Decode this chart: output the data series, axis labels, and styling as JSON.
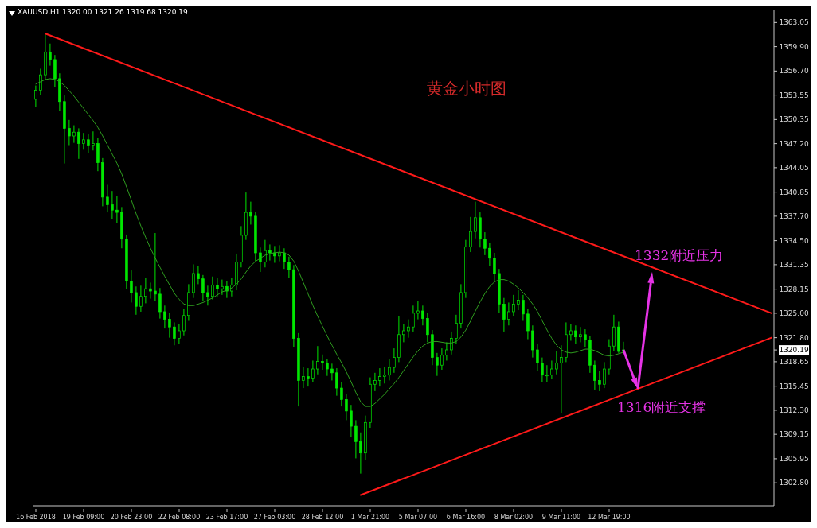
{
  "chart_data": {
    "type": "candlestick",
    "title": "黄金小时图",
    "subtitle": "XAUUSD,H1  1320.00 1321.26 1319.68 1320.19",
    "color": "#00e600",
    "categories": [
      "16 Feb 2018",
      null,
      null,
      null,
      null,
      null,
      null,
      null,
      null,
      null,
      "19 Feb 09:00",
      null,
      null,
      null,
      null,
      null,
      null,
      null,
      null,
      null,
      "20 Feb 23:00",
      null,
      null,
      null,
      null,
      null,
      null,
      null,
      null,
      null,
      "22 Feb 08:00",
      null,
      null,
      null,
      null,
      null,
      null,
      null,
      null,
      null,
      "23 Feb 17:00",
      null,
      null,
      null,
      null,
      null,
      null,
      null,
      null,
      null,
      "27 Feb 03:00",
      null,
      null,
      null,
      null,
      null,
      null,
      null,
      null,
      null,
      "28 Feb 12:00",
      null,
      null,
      null,
      null,
      null,
      null,
      null,
      null,
      null,
      "1 Mar 21:00",
      null,
      null,
      null,
      null,
      null,
      null,
      null,
      null,
      null,
      "5 Mar 07:00",
      null,
      null,
      null,
      null,
      null,
      null,
      null,
      null,
      null,
      "6 Mar 16:00",
      null,
      null,
      null,
      null,
      null,
      null,
      null,
      null,
      null,
      "8 Mar 02:00",
      null,
      null,
      null,
      null,
      null,
      null,
      null,
      null,
      null,
      "9 Mar 11:00",
      null,
      null,
      null,
      null,
      null,
      null,
      null,
      null,
      null,
      "12 Mar 19:00",
      null,
      null,
      null,
      null,
      null,
      null,
      null,
      null,
      null,
      null,
      null,
      null,
      null,
      null,
      null,
      null,
      null,
      null,
      null,
      null,
      null,
      null,
      null,
      null,
      null,
      null,
      null,
      null,
      null,
      null,
      null,
      null,
      null,
      null
    ],
    "ohlc": [
      [
        1353.0,
        1354.8,
        1352.0,
        1354.2
      ],
      [
        1354.2,
        1357.0,
        1353.6,
        1356.2
      ],
      [
        1356.2,
        1361.5,
        1355.5,
        1359.2
      ],
      [
        1359.2,
        1360.3,
        1357.4,
        1358.2
      ],
      [
        1358.2,
        1358.8,
        1354.6,
        1355.7
      ],
      [
        1355.7,
        1356.4,
        1351.5,
        1352.7
      ],
      [
        1352.7,
        1353.5,
        1344.6,
        1349.2
      ],
      [
        1349.2,
        1350.3,
        1347.0,
        1348.2
      ],
      [
        1348.2,
        1349.6,
        1347.3,
        1348.7
      ],
      [
        1348.7,
        1349.2,
        1345.2,
        1347.2
      ],
      [
        1347.2,
        1348.6,
        1346.4,
        1347.7
      ],
      [
        1347.7,
        1348.4,
        1346.0,
        1347.0
      ],
      [
        1347.0,
        1348.8,
        1346.3,
        1347.2
      ],
      [
        1347.2,
        1347.9,
        1343.6,
        1344.7
      ],
      [
        1344.7,
        1345.3,
        1339.0,
        1340.2
      ],
      [
        1340.2,
        1341.8,
        1338.2,
        1339.2
      ],
      [
        1339.2,
        1341.0,
        1337.3,
        1338.5
      ],
      [
        1338.5,
        1340.3,
        1336.8,
        1338.2
      ],
      [
        1338.2,
        1338.9,
        1333.5,
        1334.7
      ],
      [
        1334.7,
        1335.3,
        1328.2,
        1329.2
      ],
      [
        1329.2,
        1330.6,
        1326.4,
        1327.7
      ],
      [
        1327.7,
        1328.5,
        1324.8,
        1325.9
      ],
      [
        1325.9,
        1328.6,
        1325.2,
        1327.2
      ],
      [
        1327.2,
        1329.6,
        1326.3,
        1328.2
      ],
      [
        1328.2,
        1329.0,
        1326.9,
        1327.9
      ],
      [
        1327.9,
        1335.5,
        1326.6,
        1327.5
      ],
      [
        1327.5,
        1328.3,
        1324.3,
        1325.2
      ],
      [
        1325.2,
        1326.0,
        1323.0,
        1324.2
      ],
      [
        1324.2,
        1325.0,
        1321.8,
        1323.2
      ],
      [
        1323.2,
        1323.8,
        1320.8,
        1321.7
      ],
      [
        1321.7,
        1323.6,
        1321.0,
        1322.7
      ],
      [
        1322.7,
        1325.6,
        1322.1,
        1324.7
      ],
      [
        1324.7,
        1328.8,
        1324.0,
        1327.7
      ],
      [
        1327.7,
        1331.4,
        1327.0,
        1330.2
      ],
      [
        1330.2,
        1331.2,
        1328.8,
        1329.5
      ],
      [
        1329.5,
        1330.0,
        1326.6,
        1327.7
      ],
      [
        1327.7,
        1328.6,
        1326.0,
        1327.2
      ],
      [
        1327.2,
        1329.8,
        1326.8,
        1328.7
      ],
      [
        1328.7,
        1329.6,
        1327.2,
        1328.2
      ],
      [
        1328.2,
        1329.4,
        1327.4,
        1328.5
      ],
      [
        1328.5,
        1329.2,
        1327.0,
        1327.9
      ],
      [
        1327.9,
        1329.6,
        1327.2,
        1328.7
      ],
      [
        1328.7,
        1332.8,
        1328.0,
        1331.7
      ],
      [
        1331.7,
        1336.4,
        1331.0,
        1335.2
      ],
      [
        1335.2,
        1340.8,
        1334.6,
        1338.2
      ],
      [
        1338.2,
        1339.6,
        1336.6,
        1337.7
      ],
      [
        1337.7,
        1338.3,
        1331.8,
        1332.9
      ],
      [
        1332.9,
        1333.6,
        1330.4,
        1331.7
      ],
      [
        1331.7,
        1334.6,
        1331.0,
        1333.2
      ],
      [
        1333.2,
        1334.0,
        1331.9,
        1332.9
      ],
      [
        1332.9,
        1333.8,
        1331.6,
        1332.5
      ],
      [
        1332.5,
        1333.9,
        1331.8,
        1332.9
      ],
      [
        1332.9,
        1333.5,
        1330.8,
        1331.7
      ],
      [
        1331.7,
        1332.4,
        1329.6,
        1330.7
      ],
      [
        1330.7,
        1331.3,
        1320.6,
        1321.7
      ],
      [
        1321.7,
        1322.4,
        1312.8,
        1316.2
      ],
      [
        1316.2,
        1318.0,
        1315.2,
        1316.7
      ],
      [
        1316.7,
        1317.8,
        1315.4,
        1316.5
      ],
      [
        1316.5,
        1318.8,
        1316.0,
        1317.7
      ],
      [
        1317.7,
        1320.7,
        1317.0,
        1318.7
      ],
      [
        1318.7,
        1319.6,
        1317.6,
        1318.5
      ],
      [
        1318.5,
        1319.0,
        1316.8,
        1317.7
      ],
      [
        1317.7,
        1318.4,
        1316.2,
        1317.2
      ],
      [
        1317.2,
        1317.8,
        1314.2,
        1315.2
      ],
      [
        1315.2,
        1316.0,
        1312.8,
        1313.7
      ],
      [
        1313.7,
        1314.4,
        1311.0,
        1312.2
      ],
      [
        1312.2,
        1313.0,
        1308.8,
        1310.2
      ],
      [
        1310.2,
        1311.0,
        1306.0,
        1308.2
      ],
      [
        1308.2,
        1309.4,
        1304.0,
        1306.7
      ],
      [
        1306.7,
        1311.6,
        1305.8,
        1310.7
      ],
      [
        1310.7,
        1316.6,
        1310.0,
        1315.7
      ],
      [
        1315.7,
        1317.2,
        1314.8,
        1316.2
      ],
      [
        1316.2,
        1317.8,
        1315.4,
        1316.7
      ],
      [
        1316.7,
        1318.0,
        1315.8,
        1316.9
      ],
      [
        1316.9,
        1319.0,
        1316.2,
        1317.9
      ],
      [
        1317.9,
        1320.4,
        1317.2,
        1319.2
      ],
      [
        1319.2,
        1324.6,
        1318.6,
        1322.2
      ],
      [
        1322.2,
        1323.6,
        1321.2,
        1322.7
      ],
      [
        1322.7,
        1324.2,
        1321.8,
        1323.2
      ],
      [
        1323.2,
        1326.0,
        1322.6,
        1325.0
      ],
      [
        1325.0,
        1326.6,
        1324.2,
        1325.3
      ],
      [
        1325.3,
        1326.0,
        1323.4,
        1324.3
      ],
      [
        1324.3,
        1325.0,
        1321.2,
        1322.2
      ],
      [
        1322.2,
        1322.8,
        1318.2,
        1319.2
      ],
      [
        1319.2,
        1319.8,
        1316.8,
        1318.2
      ],
      [
        1318.2,
        1320.4,
        1317.6,
        1319.5
      ],
      [
        1319.5,
        1321.2,
        1318.8,
        1320.2
      ],
      [
        1320.2,
        1322.6,
        1319.6,
        1321.7
      ],
      [
        1321.7,
        1324.8,
        1321.0,
        1323.7
      ],
      [
        1323.7,
        1328.8,
        1323.0,
        1327.7
      ],
      [
        1327.7,
        1334.6,
        1327.0,
        1333.7
      ],
      [
        1333.7,
        1337.6,
        1333.0,
        1335.7
      ],
      [
        1335.7,
        1339.6,
        1334.8,
        1337.5
      ],
      [
        1337.5,
        1338.2,
        1333.6,
        1334.7
      ],
      [
        1334.7,
        1335.6,
        1332.6,
        1333.5
      ],
      [
        1333.5,
        1334.2,
        1331.2,
        1332.2
      ],
      [
        1332.2,
        1332.9,
        1329.2,
        1330.2
      ],
      [
        1330.2,
        1330.8,
        1325.0,
        1326.2
      ],
      [
        1326.2,
        1327.0,
        1322.6,
        1324.2
      ],
      [
        1324.2,
        1326.4,
        1323.4,
        1325.2
      ],
      [
        1325.2,
        1327.4,
        1324.6,
        1326.2
      ],
      [
        1326.2,
        1328.0,
        1325.4,
        1326.7
      ],
      [
        1326.7,
        1327.4,
        1324.0,
        1324.9
      ],
      [
        1324.9,
        1325.6,
        1321.6,
        1322.7
      ],
      [
        1322.7,
        1323.4,
        1319.2,
        1320.2
      ],
      [
        1320.2,
        1321.0,
        1317.4,
        1318.5
      ],
      [
        1318.5,
        1319.2,
        1316.0,
        1316.9
      ],
      [
        1316.9,
        1318.2,
        1316.0,
        1316.9
      ],
      [
        1316.9,
        1318.8,
        1316.4,
        1317.7
      ],
      [
        1317.7,
        1320.0,
        1317.0,
        1318.5
      ],
      [
        1318.5,
        1320.8,
        1311.9,
        1319.2
      ],
      [
        1319.2,
        1323.8,
        1318.6,
        1322.2
      ],
      [
        1322.2,
        1323.6,
        1321.4,
        1322.7
      ],
      [
        1322.7,
        1323.4,
        1321.0,
        1321.9
      ],
      [
        1321.9,
        1323.2,
        1321.2,
        1322.2
      ],
      [
        1322.2,
        1322.9,
        1320.6,
        1321.5
      ],
      [
        1321.5,
        1322.0,
        1317.2,
        1318.2
      ],
      [
        1318.2,
        1318.8,
        1315.0,
        1316.2
      ],
      [
        1316.2,
        1317.4,
        1314.8,
        1315.7
      ],
      [
        1315.7,
        1318.6,
        1315.2,
        1317.7
      ],
      [
        1317.7,
        1321.6,
        1317.0,
        1320.7
      ],
      [
        1320.7,
        1324.8,
        1320.0,
        1323.2
      ],
      [
        1323.2,
        1323.9,
        1319.8,
        1320.0
      ],
      [
        1320.0,
        1321.26,
        1319.68,
        1320.19
      ],
      null,
      null,
      null,
      null,
      null,
      null,
      null,
      null,
      null,
      null,
      null,
      null,
      null,
      null,
      null,
      null,
      null,
      null,
      null,
      null,
      null,
      null,
      null,
      null,
      null,
      null,
      null,
      null,
      null,
      null,
      null
    ],
    "series": [
      {
        "type": "line",
        "color": "#2f9e1f",
        "values": [
          1355,
          1355.3,
          1355.6,
          1355.7,
          1355.6,
          1355.3,
          1354.8,
          1354.1,
          1353.4,
          1352.6,
          1351.8,
          1351.0,
          1350.2,
          1349.3,
          1348.2,
          1347.0,
          1345.8,
          1344.6,
          1343.2,
          1341.5,
          1339.8,
          1338.0,
          1336.4,
          1334.9,
          1333.5,
          1332.2,
          1331.0,
          1329.8,
          1328.7,
          1327.6,
          1326.8,
          1326.2,
          1326.0,
          1326.0,
          1326.2,
          1326.4,
          1326.7,
          1327.0,
          1327.4,
          1327.8,
          1328.0,
          1328.3,
          1328.8,
          1329.5,
          1330.4,
          1331.2,
          1331.8,
          1332.2,
          1332.6,
          1332.8,
          1332.9,
          1333.0,
          1332.9,
          1332.6,
          1331.8,
          1330.5,
          1329.0,
          1327.5,
          1326.0,
          1324.6,
          1323.3,
          1322.0,
          1320.8,
          1319.6,
          1318.5,
          1317.3,
          1316.0,
          1314.6,
          1313.4,
          1312.8,
          1312.8,
          1313.2,
          1313.8,
          1314.4,
          1315.1,
          1315.8,
          1316.6,
          1317.5,
          1318.4,
          1319.3,
          1320.1,
          1320.7,
          1321.1,
          1321.3,
          1321.3,
          1321.2,
          1321.1,
          1321.1,
          1321.3,
          1321.9,
          1322.8,
          1324.0,
          1325.3,
          1326.5,
          1327.6,
          1328.5,
          1329.1,
          1329.4,
          1329.4,
          1329.2,
          1328.8,
          1328.3,
          1327.7,
          1327.0,
          1326.2,
          1325.2,
          1324.0,
          1322.8,
          1321.7,
          1320.8,
          1320.2,
          1319.9,
          1319.8,
          1319.9,
          1320.1,
          1320.3,
          1320.3,
          1320.1,
          1319.8,
          1319.5,
          1319.4,
          1319.5,
          1319.7,
          1319.9,
          null,
          null,
          null,
          null,
          null,
          null,
          null,
          null,
          null,
          null,
          null,
          null,
          null,
          null,
          null,
          null,
          null,
          null,
          null,
          null,
          null,
          null,
          null,
          null,
          null,
          null,
          null,
          null,
          null,
          null,
          null
        ]
      },
      {
        "type": "line",
        "color": "#ff1a1a",
        "values": [
          null,
          null,
          1361.6,
          null,
          null,
          null,
          null,
          null,
          null,
          null,
          null,
          null,
          null,
          null,
          null,
          null,
          null,
          null,
          null,
          null,
          null,
          null,
          null,
          null,
          null,
          null,
          null,
          null,
          null,
          null,
          null,
          null,
          null,
          null,
          null,
          null,
          null,
          null,
          null,
          null,
          null,
          null,
          null,
          null,
          null,
          null,
          null,
          null,
          null,
          null,
          null,
          null,
          null,
          null,
          null,
          null,
          null,
          null,
          null,
          null,
          null,
          null,
          null,
          null,
          null,
          null,
          null,
          null,
          null,
          null,
          null,
          null,
          null,
          null,
          null,
          null,
          null,
          null,
          null,
          null,
          null,
          null,
          null,
          null,
          null,
          null,
          null,
          null,
          null,
          null,
          null,
          null,
          null,
          null,
          null,
          null,
          null,
          null,
          null,
          null,
          null,
          null,
          null,
          null,
          null,
          null,
          null,
          null,
          null,
          null,
          null,
          null,
          null,
          null,
          null,
          null,
          null,
          null,
          null,
          null,
          null,
          null,
          null,
          null,
          null,
          null,
          null,
          null,
          null,
          null,
          null,
          null,
          null,
          null,
          null,
          null,
          null,
          null,
          null,
          null,
          null,
          null,
          null,
          null,
          null,
          null,
          null,
          null,
          null,
          null,
          null,
          null,
          null,
          null,
          1325.0
        ]
      },
      {
        "type": "line",
        "color": "#ff1a1a",
        "values": [
          null,
          null,
          null,
          null,
          null,
          null,
          null,
          null,
          null,
          null,
          null,
          null,
          null,
          null,
          null,
          null,
          null,
          null,
          null,
          null,
          null,
          null,
          null,
          null,
          null,
          null,
          null,
          null,
          null,
          null,
          null,
          null,
          null,
          null,
          null,
          null,
          null,
          null,
          null,
          null,
          null,
          null,
          null,
          null,
          null,
          null,
          null,
          null,
          null,
          null,
          null,
          null,
          null,
          null,
          null,
          null,
          null,
          null,
          null,
          null,
          null,
          null,
          null,
          null,
          null,
          null,
          null,
          null,
          1301.2,
          null,
          null,
          null,
          null,
          null,
          null,
          null,
          null,
          null,
          null,
          null,
          null,
          null,
          null,
          null,
          null,
          null,
          null,
          null,
          null,
          null,
          null,
          null,
          null,
          null,
          null,
          null,
          null,
          null,
          null,
          null,
          null,
          null,
          null,
          null,
          null,
          null,
          null,
          null,
          null,
          null,
          null,
          null,
          null,
          null,
          null,
          null,
          null,
          null,
          null,
          null,
          null,
          null,
          null,
          null,
          null,
          null,
          null,
          null,
          null,
          null,
          null,
          null,
          null,
          null,
          null,
          null,
          null,
          null,
          null,
          null,
          null,
          null,
          null,
          null,
          null,
          null,
          null,
          null,
          null,
          null,
          null,
          null,
          null,
          null,
          1321.8
        ]
      }
    ],
    "ylim": [
      1299.8,
      1364.75
    ],
    "yticks": [
      1363.05,
      {
        "value": 1359.9,
        "label": "1359.90"
      },
      {
        "value": 1356.7,
        "label": "1356.70"
      },
      1353.55,
      1350.35,
      {
        "value": 1347.2,
        "label": "1347.20"
      },
      1344.05,
      1340.85,
      {
        "value": 1337.7,
        "label": "1337.70"
      },
      {
        "value": 1334.5,
        "label": "1334.50"
      },
      1331.35,
      1328.15,
      {
        "value": 1325.0,
        "label": "1325.00"
      },
      {
        "value": 1321.8,
        "label": "1321.80"
      },
      1320.19,
      1318.65,
      1315.45,
      {
        "value": 1312.3,
        "label": "1312.30"
      },
      1309.15,
      1305.95,
      {
        "value": 1302.8,
        "label": "1302.80"
      }
    ],
    "annotations": [
      "1332附近压力",
      "1316附近支撑"
    ]
  }
}
